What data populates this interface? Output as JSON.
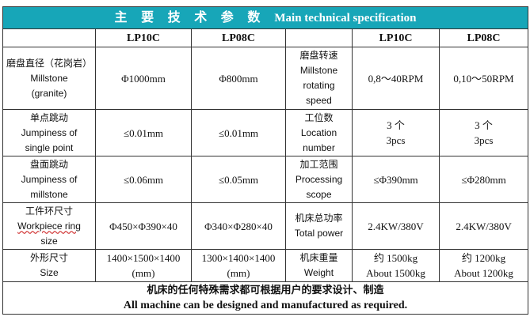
{
  "title": {
    "cn": "主 要 技 术 参 数",
    "en": "Main technical specification"
  },
  "header": {
    "col_a": "LP10C",
    "col_b": "LP08C",
    "col_c": "LP10C",
    "col_d": "LP08C"
  },
  "rows": [
    {
      "left_label_cn": "磨盘直径（花岗岩）",
      "left_label_en_1": "Millstone",
      "left_label_en_2": "(granite)",
      "left_a": "Φ1000mm",
      "left_b": "Φ800mm",
      "right_label_cn": "磨盘转速",
      "right_label_en_1": "Millstone",
      "right_label_en_2": "rotating",
      "right_label_en_3": "speed",
      "right_a": "0,8～40RPM",
      "right_b": "0,10～50RPM"
    },
    {
      "left_label_cn": "单点跳动",
      "left_label_en_1": "Jumpiness of",
      "left_label_en_2": "single point",
      "left_a": "≤0.01mm",
      "left_b": "≤0.01mm",
      "right_label_cn": "工位数",
      "right_label_en_1": "Location",
      "right_label_en_2": "number",
      "right_a_1": "3 个",
      "right_a_2": "3pcs",
      "right_b_1": "3 个",
      "right_b_2": "3pcs"
    },
    {
      "left_label_cn": "盘面跳动",
      "left_label_en_1": "Jumpiness of",
      "left_label_en_2": "millstone",
      "left_a": "≤0.06mm",
      "left_b": "≤0.05mm",
      "right_label_cn": "加工范围",
      "right_label_en_1": "Processing",
      "right_label_en_2": "scope",
      "right_a": "≤Φ390mm",
      "right_b": "≤Φ280mm"
    },
    {
      "left_label_cn": "工件环尺寸",
      "left_label_en_1": "Workpiece ring",
      "left_label_en_2": "size",
      "left_a": "Φ450×Φ390×40",
      "left_b": "Φ340×Φ280×40",
      "right_label_cn": "机床总功率",
      "right_label_en_1": "Total power",
      "right_a": "2.4KW/380V",
      "right_b": "2.4KW/380V"
    },
    {
      "left_label_cn": "外形尺寸",
      "left_label_en_1": "Size",
      "left_a_1": "1400×1500×1400",
      "left_a_2": "(mm)",
      "left_b_1": "1300×1400×1400",
      "left_b_2": "(mm)",
      "right_label_cn": "机床重量",
      "right_label_en_1": "Weight",
      "right_a_1": "约 1500kg",
      "right_a_2": "About 1500kg",
      "right_b_1": "约 1200kg",
      "right_b_2": "About 1200kg"
    }
  ],
  "footer": {
    "cn": "机床的任何特殊需求都可根据用户的要求设计、制造",
    "en": "All machine can be designed and manufactured as required."
  },
  "colors": {
    "title_bg": "#17a6b8",
    "title_text": "#ffffff",
    "border": "#333333"
  }
}
